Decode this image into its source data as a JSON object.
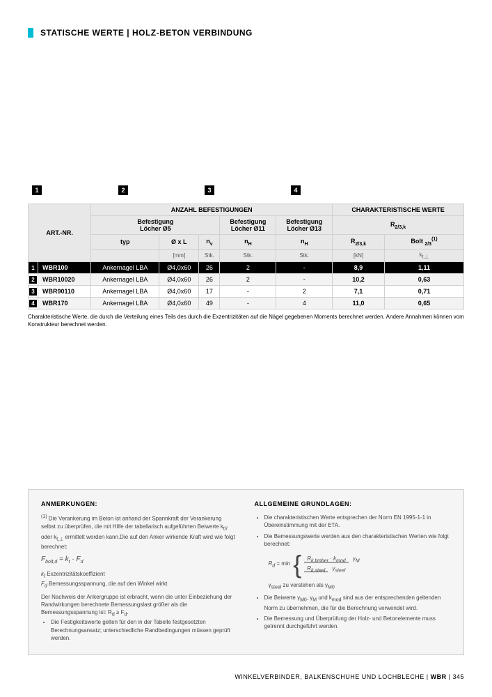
{
  "header": {
    "title_a": "STATISCHE WERTE",
    "title_b": "HOLZ-BETON VERBINDUNG"
  },
  "diagram_numbers": [
    "1",
    "2",
    "3",
    "4"
  ],
  "table": {
    "header_group_a": "ANZAHL BEFESTIGUNGEN",
    "header_group_b": "CHARAKTERISTISCHE WERTE",
    "sub_bef": "Befestigung",
    "sub_l5": "Löcher Ø5",
    "sub_l11": "Löcher Ø11",
    "sub_l13": "Löcher Ø13",
    "sub_r23k": "R",
    "sub_r23k_sub": "2/3,k",
    "col_art": "ART.-NR.",
    "col_typ": "typ",
    "col_dxl": "Ø x L",
    "col_nv": "n",
    "col_nv_sub": "v",
    "col_nH": "n",
    "col_nH_sub": "H",
    "col_r23": "R",
    "col_r23_sub": "2/3,k",
    "col_bolt": "Bolt ",
    "col_bolt_sub": "2/3",
    "col_bolt_sup": "(1)",
    "unit_mm": "[mm]",
    "unit_stk": "Stk.",
    "unit_kn": "[kN]",
    "unit_kt": "k",
    "unit_kt_sub": "t,⊥",
    "rows": [
      {
        "n": "1",
        "art": "WBR100",
        "typ": "Ankernagel LBA",
        "dxl": "Ø4,0x60",
        "nv": "26",
        "nh11": "2",
        "nh13": "-",
        "r23": "8,9",
        "bolt": "1,11",
        "dark": true
      },
      {
        "n": "2",
        "art": "WBR10020",
        "typ": "Ankernagel LBA",
        "dxl": "Ø4,0x60",
        "nv": "26",
        "nh11": "2",
        "nh13": "-",
        "r23": "10,2",
        "bolt": "0,63"
      },
      {
        "n": "3",
        "art": "WBR90110",
        "typ": "Ankernagel LBA",
        "dxl": "Ø4,0x60",
        "nv": "17",
        "nh11": "-",
        "nh13": "2",
        "r23": "7,1",
        "bolt": "0,71"
      },
      {
        "n": "4",
        "art": "WBR170",
        "typ": "Ankernagel LBA",
        "dxl": "Ø4,0x60",
        "nv": "49",
        "nh11": "-",
        "nh13": "4",
        "r23": "11,0",
        "bolt": "0,65"
      }
    ],
    "note": "Charakteristische Werte, die durch die Verteilung eines Teils des durch die Exzentrizitäten auf die Nägel gegebenen Moments berechnet werden. Andere Annahmen können vom Konstrukteur berechnet werden."
  },
  "footnotes": {
    "left_title": "ANMERKUNGEN:",
    "left_p1_sup": "(1)",
    "left_p1": "Die Verankerung im Beton ist anhand der Spannkraft der Verankerung selbst zu überprüfen, die mit Hilfe der tabellarisch aufgeführten Beiwerte k",
    "left_p1b": " oder k",
    "left_p1c": " ermittelt werden kann.Die auf den Anker wirkende Kraft wird wie folgt berechnet:",
    "formula_f": "F",
    "formula_f_sub": "bolt,d",
    "formula_eq": " = k",
    "formula_t": "t",
    "formula_dot": " · F",
    "formula_d": "d",
    "kt_line": "k",
    "kt_line_sub": "t",
    "kt_line_rest": " Exzentrizitätskoeffizient",
    "fd_line": "F",
    "fd_line_sub": "d",
    "fd_line_rest": " Bemessungsspannung, die auf den Winkel wirkt",
    "left_p2": "Der Nachweis der Ankergruppe ist erbracht, wenn die unter Einbeziehung der Randwirkungen berechnete Bemessungslast größer als die Bemessungsspannung ist: R",
    "left_p2_sub": "d",
    "left_p2_rest": " ≥ F",
    "left_p2_sub2": "d",
    "left_p2_dot": ".",
    "left_li2": "Die Festigkeitswerte gelten für den in der Tabelle festgesetzten Berechnungsansatz; unterschiedliche Randbedingungen müssen geprüft werden.",
    "right_title": "ALLGEMEINE GRUNDLAGEN:",
    "right_li1": "Die charakteristischen Werte entsprechen der Norm EN 1995-1-1 in Übereinstimmung mit der ETA.",
    "right_li2": "Die Bemessungswerte werden aus den charakteristischen Werten wie folgt berechnet:",
    "rd_label": "R",
    "rd_sub": "d",
    "min_label": " = min",
    "frac1_num_a": "R",
    "frac1_num_a_sub": "k,timber",
    "frac1_num_b": " · k",
    "frac1_num_b_sub": "mod",
    "frac1_den": "γ",
    "frac1_den_sub": "M",
    "frac2_num": "R",
    "frac2_num_sub": "k,steel",
    "frac2_den": "γ",
    "frac2_den_sub": "steel",
    "ysteel_note_a": "γ",
    "ysteel_note_a_sub": "steel",
    "ysteel_note_b": " zu verstehen als γ",
    "ysteel_note_b_sub": "M0",
    "right_li3a": "Die Beiwerte γ",
    "right_li3a_sub": "M0",
    "right_li3b": ", γ",
    "right_li3b_sub": "M",
    "right_li3c": " und k",
    "right_li3c_sub": "mod",
    "right_li3d": " sind aus der entsprechenden geltenden Norm zu übernehmen, die für die Berechnung verwendet wird.",
    "right_li4": "Die Bemessung und Überprüfung der Holz- und Betonelemente muss getrennt durchgeführt werden."
  },
  "footer": {
    "text_a": "WINKELVERBINDER, BALKENSCHUHE UND LOCHBLECHE",
    "sep": "  |  ",
    "text_b": "WBR",
    "page": "345"
  },
  "colors": {
    "accent": "#00bcd4",
    "header_bg": "#e8e8e8",
    "row_alt": "#f3f3f3",
    "footnote_bg": "#f5f5f5",
    "border": "#d0d0d0"
  }
}
